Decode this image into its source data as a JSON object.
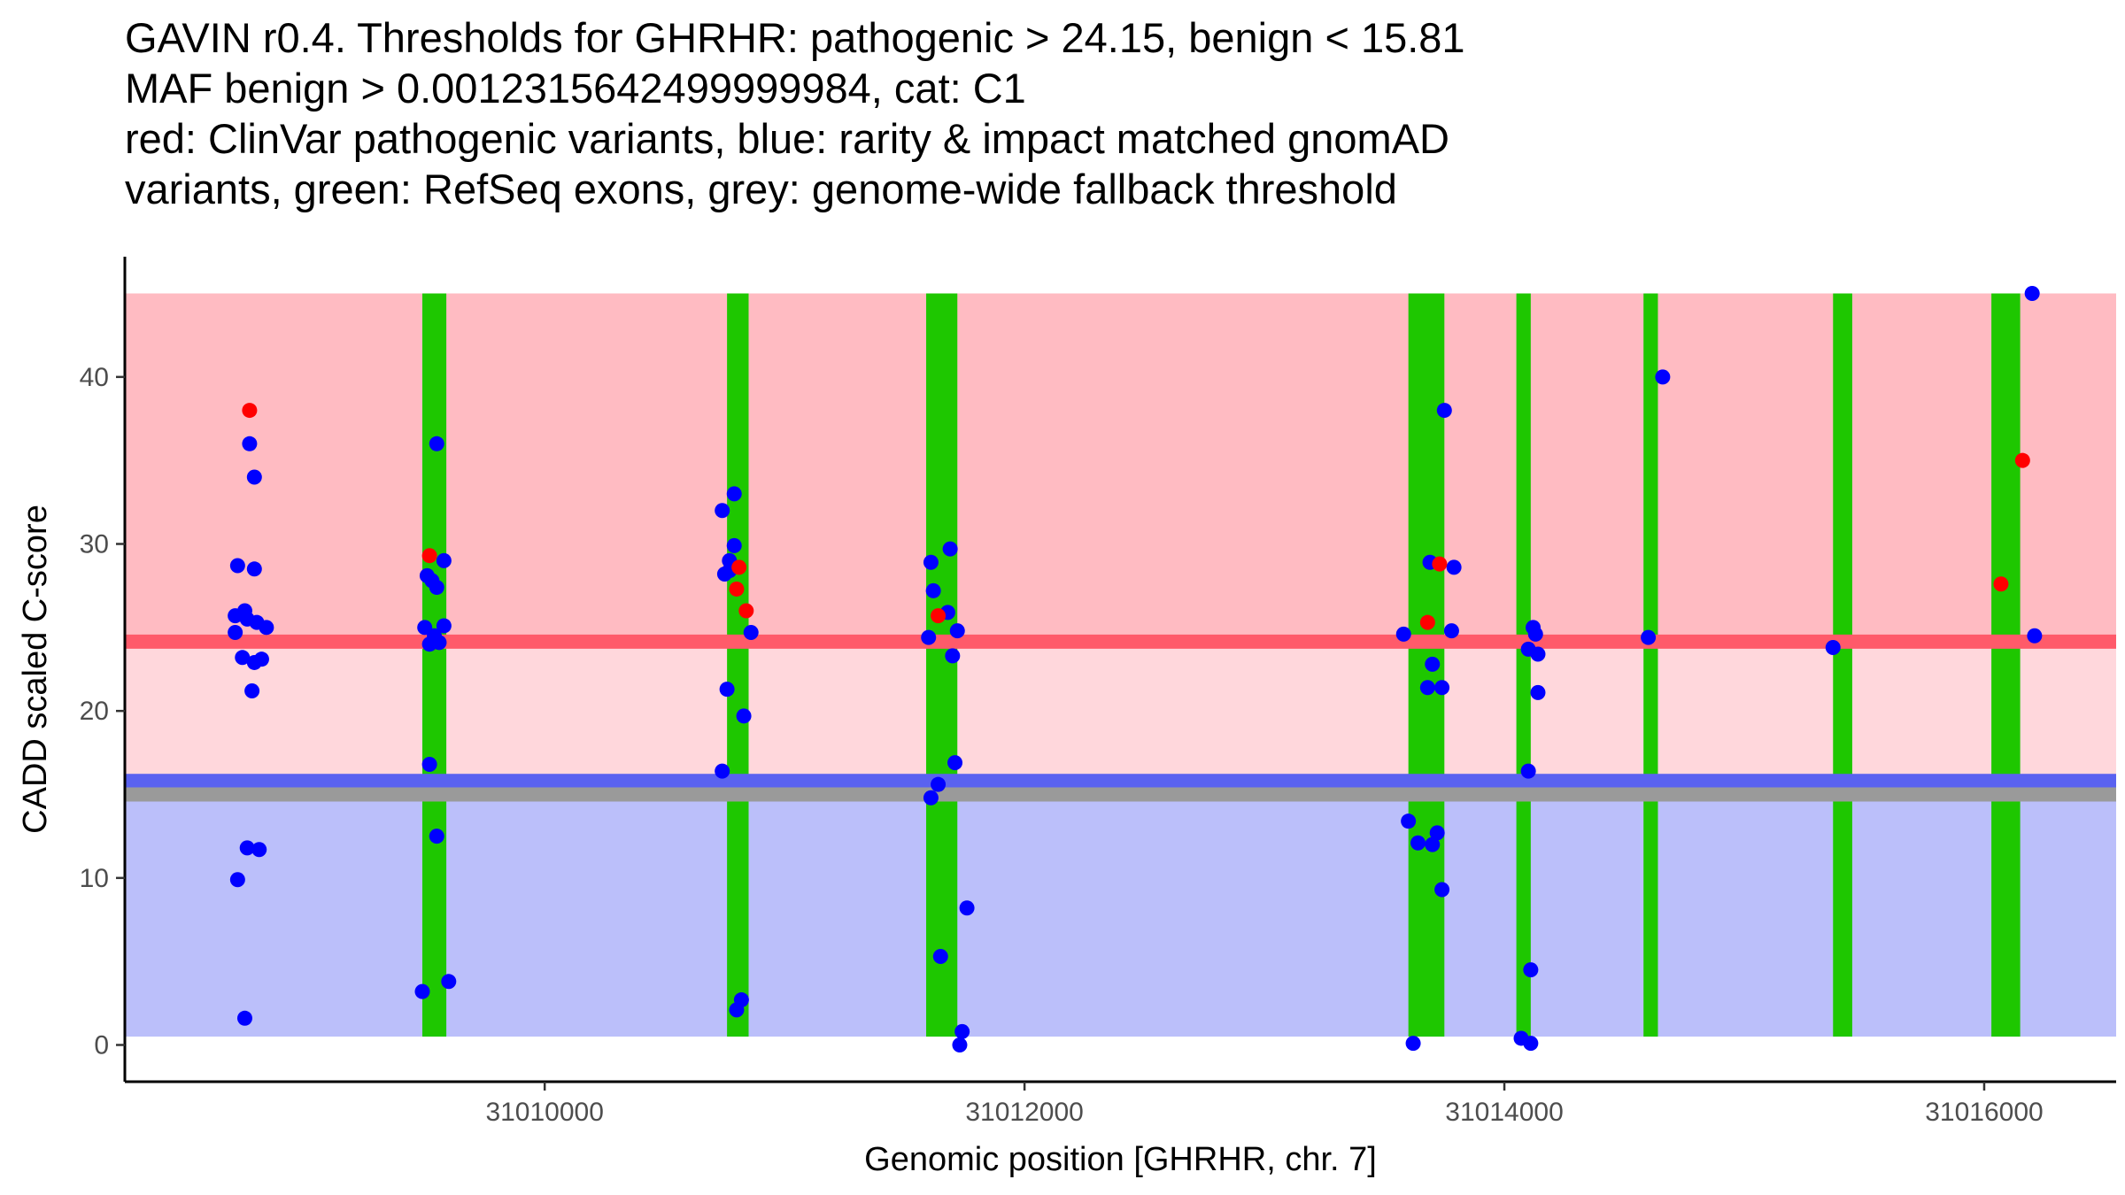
{
  "title_lines": [
    "GAVIN r0.4. Thresholds for GHRHR: pathogenic > 24.15, benign < 15.81",
    "MAF benign > 0.0012315642499999984, cat: C1",
    "red: ClinVar pathogenic variants, blue: rarity & impact matched gnomAD",
    "variants, green: RefSeq exons, grey: genome-wide fallback threshold"
  ],
  "chart_data": {
    "type": "scatter",
    "xlabel": "Genomic position [GHRHR, chr. 7]",
    "ylabel": "CADD scaled C-score",
    "xlim": [
      31008250,
      31016550
    ],
    "ylim": [
      -2.2,
      47.2
    ],
    "x_ticks": [
      31010000,
      31012000,
      31014000,
      31016000
    ],
    "y_ticks": [
      0,
      10,
      20,
      30,
      40
    ],
    "thresholds": {
      "pathogenic": 24.15,
      "benign": 15.81,
      "genome_wide_fallback": 15.0,
      "band_top": 45,
      "band_bottom": 0.5
    },
    "colors": {
      "pathogenic_region": "#ffbbc2",
      "mid_region": "#ffd7dc",
      "benign_region": "#bbbffa",
      "pathogenic_line": "#ff5a6a",
      "benign_line": "#5a62f0",
      "fallback_line": "#9a9a9a",
      "exon": "#1ec700",
      "clinvar_point": "#ff0000",
      "gnomad_point": "#0000ff"
    },
    "exons": [
      {
        "start": 31009490,
        "end": 31009590
      },
      {
        "start": 31010760,
        "end": 31010850
      },
      {
        "start": 31011590,
        "end": 31011720
      },
      {
        "start": 31013600,
        "end": 31013750
      },
      {
        "start": 31014050,
        "end": 31014110
      },
      {
        "start": 31014580,
        "end": 31014640
      },
      {
        "start": 31015370,
        "end": 31015450
      },
      {
        "start": 31016030,
        "end": 31016150
      }
    ],
    "series": [
      {
        "name": "ClinVar pathogenic variants",
        "color": "#ff0000",
        "points": [
          [
            31008770,
            38.0
          ],
          [
            31009520,
            29.3
          ],
          [
            31010810,
            28.6
          ],
          [
            31010800,
            27.3
          ],
          [
            31010840,
            26.0
          ],
          [
            31011640,
            25.7
          ],
          [
            31013680,
            25.3
          ],
          [
            31013730,
            28.8
          ],
          [
            31016070,
            27.6
          ],
          [
            31016160,
            35.0
          ]
        ]
      },
      {
        "name": "rarity & impact matched gnomAD variants",
        "color": "#0000ff",
        "points": [
          [
            31008770,
            36.0
          ],
          [
            31008790,
            34.0
          ],
          [
            31008720,
            28.7
          ],
          [
            31008790,
            28.5
          ],
          [
            31008710,
            25.7
          ],
          [
            31008750,
            26.0
          ],
          [
            31008760,
            25.5
          ],
          [
            31008800,
            25.3
          ],
          [
            31008840,
            25.0
          ],
          [
            31008710,
            24.7
          ],
          [
            31008740,
            23.2
          ],
          [
            31008790,
            22.9
          ],
          [
            31008820,
            23.1
          ],
          [
            31008780,
            21.2
          ],
          [
            31008760,
            11.8
          ],
          [
            31008810,
            11.7
          ],
          [
            31008720,
            9.9
          ],
          [
            31008750,
            1.6
          ],
          [
            31009550,
            36.0
          ],
          [
            31009580,
            29.0
          ],
          [
            31009510,
            28.1
          ],
          [
            31009530,
            27.8
          ],
          [
            31009550,
            27.4
          ],
          [
            31009500,
            25.0
          ],
          [
            31009580,
            25.1
          ],
          [
            31009520,
            24.0
          ],
          [
            31009560,
            24.1
          ],
          [
            31009540,
            24.5
          ],
          [
            31009520,
            16.8
          ],
          [
            31009550,
            12.5
          ],
          [
            31009490,
            3.2
          ],
          [
            31009600,
            3.8
          ],
          [
            31010790,
            33.0
          ],
          [
            31010740,
            32.0
          ],
          [
            31010790,
            29.9
          ],
          [
            31010770,
            29.0
          ],
          [
            31010750,
            28.2
          ],
          [
            31010770,
            28.4
          ],
          [
            31010860,
            24.7
          ],
          [
            31010760,
            21.3
          ],
          [
            31010830,
            19.7
          ],
          [
            31010740,
            16.4
          ],
          [
            31010820,
            2.7
          ],
          [
            31010800,
            2.1
          ],
          [
            31011690,
            29.7
          ],
          [
            31011610,
            28.9
          ],
          [
            31011620,
            27.2
          ],
          [
            31011680,
            25.9
          ],
          [
            31011720,
            24.8
          ],
          [
            31011600,
            24.4
          ],
          [
            31011700,
            23.3
          ],
          [
            31011710,
            16.9
          ],
          [
            31011640,
            15.6
          ],
          [
            31011610,
            14.8
          ],
          [
            31011760,
            8.2
          ],
          [
            31011650,
            5.3
          ],
          [
            31011740,
            0.8
          ],
          [
            31011730,
            0.0
          ],
          [
            31013690,
            28.9
          ],
          [
            31013790,
            28.6
          ],
          [
            31013580,
            24.6
          ],
          [
            31013780,
            24.8
          ],
          [
            31013700,
            22.8
          ],
          [
            31013680,
            21.4
          ],
          [
            31013740,
            21.4
          ],
          [
            31013600,
            13.4
          ],
          [
            31013640,
            12.1
          ],
          [
            31013720,
            12.7
          ],
          [
            31013700,
            12.0
          ],
          [
            31013740,
            9.3
          ],
          [
            31013620,
            0.1
          ],
          [
            31013750,
            38.0
          ],
          [
            31014120,
            25.0
          ],
          [
            31014130,
            24.6
          ],
          [
            31014100,
            23.7
          ],
          [
            31014140,
            23.4
          ],
          [
            31014140,
            21.1
          ],
          [
            31014100,
            16.4
          ],
          [
            31014110,
            4.5
          ],
          [
            31014070,
            0.4
          ],
          [
            31014110,
            0.1
          ],
          [
            31014600,
            24.4
          ],
          [
            31014660,
            40.0
          ],
          [
            31015370,
            23.8
          ],
          [
            31016200,
            45.0
          ],
          [
            31016210,
            24.5
          ]
        ]
      }
    ]
  }
}
